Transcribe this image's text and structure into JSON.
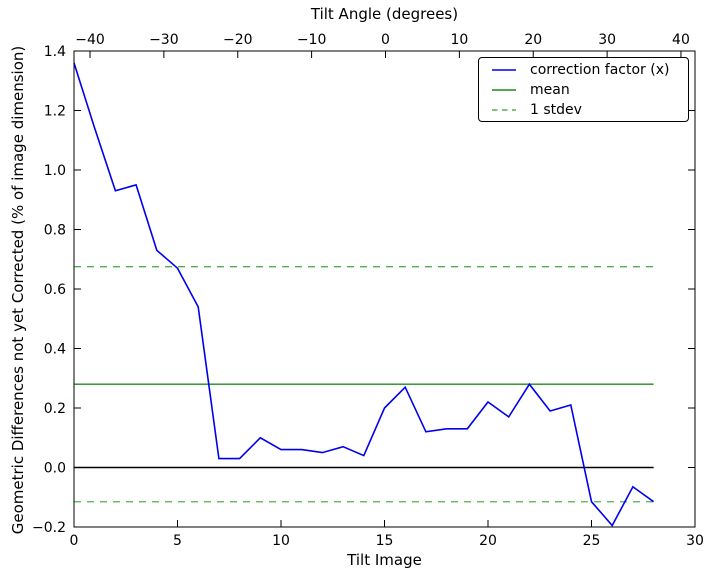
{
  "figure": {
    "background": "#ffffff",
    "frame_color": "#000000"
  },
  "legend": {
    "items": [
      {
        "label": "correction factor (x)",
        "color": "#0000ee",
        "style": "solid"
      },
      {
        "label": "mean",
        "color": "#1f8c1f",
        "style": "solid"
      },
      {
        "label": "1 stdev",
        "color": "#53ae53",
        "style": "dashed"
      }
    ]
  },
  "chart_data": {
    "type": "line",
    "title": "Tilt Angle (degrees)",
    "xlabel": "Tilt Image",
    "ylabel": "Geometric Differences not yet Corrected (% of image dimension)",
    "xlim": [
      0,
      30
    ],
    "ylim": [
      -0.2,
      1.4
    ],
    "grid": false,
    "legend_position": "upper right",
    "x": [
      0,
      1,
      2,
      3,
      4,
      5,
      6,
      7,
      8,
      9,
      10,
      11,
      12,
      13,
      14,
      15,
      16,
      17,
      18,
      19,
      20,
      21,
      22,
      23,
      24,
      25,
      26,
      27,
      28
    ],
    "series": [
      {
        "name": "zero line",
        "color": "#000000",
        "style": "solid",
        "width": 1.6,
        "const_value": 0.0
      },
      {
        "name": "mean",
        "color": "#1f8c1f",
        "style": "solid",
        "width": 1.3,
        "const_value": 0.28
      },
      {
        "name": "1 stdev",
        "color": "#53ae53",
        "style": "dashed",
        "width": 1.3,
        "const_values": [
          0.675,
          -0.115
        ]
      },
      {
        "name": "correction factor (x)",
        "color": "#0000ee",
        "style": "solid",
        "width": 1.6,
        "values": [
          1.36,
          1.14,
          0.93,
          0.95,
          0.73,
          0.67,
          0.54,
          0.03,
          0.03,
          0.1,
          0.06,
          0.06,
          0.05,
          0.07,
          0.04,
          0.2,
          0.27,
          0.12,
          0.13,
          0.13,
          0.22,
          0.17,
          0.28,
          0.19,
          0.21,
          -0.115,
          -0.195,
          -0.065,
          -0.115
        ]
      }
    ],
    "stats": {
      "mean": 0.28,
      "stdev": 0.395
    },
    "left_ticks": {
      "values": [
        1.4,
        1.2,
        1.0,
        0.8,
        0.6,
        0.4,
        0.2,
        0.0,
        -0.2
      ],
      "labels": [
        "1.4",
        "1.2",
        "1.0",
        "0.8",
        "0.6",
        "0.4",
        "0.2",
        "0.0",
        "−0.2"
      ]
    },
    "bottom_ticks": {
      "values": [
        0,
        5,
        10,
        15,
        20,
        25,
        30
      ],
      "labels": [
        "0",
        "5",
        "10",
        "15",
        "20",
        "25",
        "30"
      ]
    },
    "top_ticks": {
      "labels": [
        "−40",
        "−30",
        "−20",
        "−10",
        "0",
        "10",
        "20",
        "30",
        "40"
      ],
      "fractions": [
        0.0258,
        0.1447,
        0.2637,
        0.3826,
        0.5016,
        0.6206,
        0.7395,
        0.8585,
        0.9774
      ]
    }
  }
}
